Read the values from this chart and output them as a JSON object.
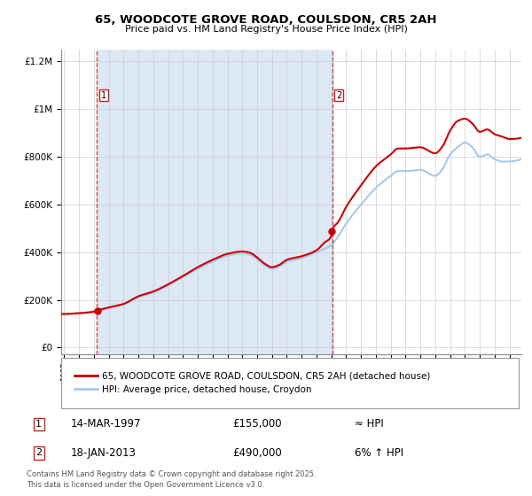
{
  "title": "65, WOODCOTE GROVE ROAD, COULSDON, CR5 2AH",
  "subtitle": "Price paid vs. HM Land Registry's House Price Index (HPI)",
  "purchase1_label": "14-MAR-1997",
  "purchase1_price": 155000,
  "purchase1_hpi": "≈ HPI",
  "purchase2_label": "18-JAN-2013",
  "purchase2_price": 490000,
  "purchase2_hpi": "6% ↑ HPI",
  "purchase1_year": 1997.21,
  "purchase2_year": 2013.05,
  "ylim_max": 1250000,
  "ylim_min": -30000,
  "xmin": 1994.8,
  "xmax": 2025.8,
  "hpi_color": "#a8c8e8",
  "price_color": "#cc0000",
  "bg_shade_color": "#dde8f5",
  "grid_color": "#cccccc",
  "legend_label_price": "65, WOODCOTE GROVE ROAD, COULSDON, CR5 2AH (detached house)",
  "legend_label_hpi": "HPI: Average price, detached house, Croydon",
  "footer": "Contains HM Land Registry data © Crown copyright and database right 2025.\nThis data is licensed under the Open Government Licence v3.0.",
  "hpi_anchors_x": [
    1994.8,
    1995.5,
    1997,
    1998,
    1999,
    2000,
    2001,
    2002,
    2003,
    2004,
    2005,
    2006,
    2007,
    2007.5,
    2008,
    2008.5,
    2009,
    2009.5,
    2010,
    2011,
    2012,
    2013,
    2013.5,
    2014,
    2015,
    2016,
    2017,
    2017.5,
    2018,
    2019,
    2020,
    2020.5,
    2021,
    2021.5,
    2022,
    2022.5,
    2023,
    2023.5,
    2024,
    2024.5,
    2025.8
  ],
  "hpi_anchors_y": [
    140000,
    142000,
    152000,
    165000,
    180000,
    210000,
    230000,
    260000,
    295000,
    330000,
    360000,
    385000,
    395000,
    390000,
    370000,
    345000,
    330000,
    340000,
    360000,
    375000,
    400000,
    430000,
    470000,
    520000,
    600000,
    670000,
    720000,
    740000,
    740000,
    745000,
    720000,
    750000,
    810000,
    840000,
    860000,
    840000,
    800000,
    810000,
    790000,
    780000,
    790000
  ],
  "price_anchors_x": [
    1994.8,
    1995.5,
    1997.0,
    1997.21,
    1998,
    1999,
    2000,
    2001,
    2002,
    2003,
    2004,
    2005,
    2006,
    2007,
    2007.5,
    2008,
    2008.5,
    2009,
    2009.5,
    2010,
    2011,
    2012,
    2012.5,
    2013.0,
    2013.05,
    2013.5,
    2014,
    2015,
    2016,
    2017,
    2017.5,
    2018,
    2019,
    2020,
    2020.5,
    2021,
    2021.5,
    2022,
    2022.5,
    2023,
    2023.5,
    2024,
    2024.5,
    2025,
    2025.8
  ],
  "price_anchors_y": [
    140000,
    142000,
    150000,
    155000,
    168000,
    183000,
    215000,
    235000,
    265000,
    300000,
    337000,
    368000,
    393000,
    403000,
    398000,
    378000,
    352000,
    337000,
    347000,
    368000,
    383000,
    408000,
    438000,
    468000,
    490000,
    530000,
    590000,
    680000,
    760000,
    810000,
    835000,
    835000,
    840000,
    815000,
    845000,
    910000,
    950000,
    960000,
    940000,
    905000,
    915000,
    895000,
    885000,
    875000,
    880000
  ]
}
